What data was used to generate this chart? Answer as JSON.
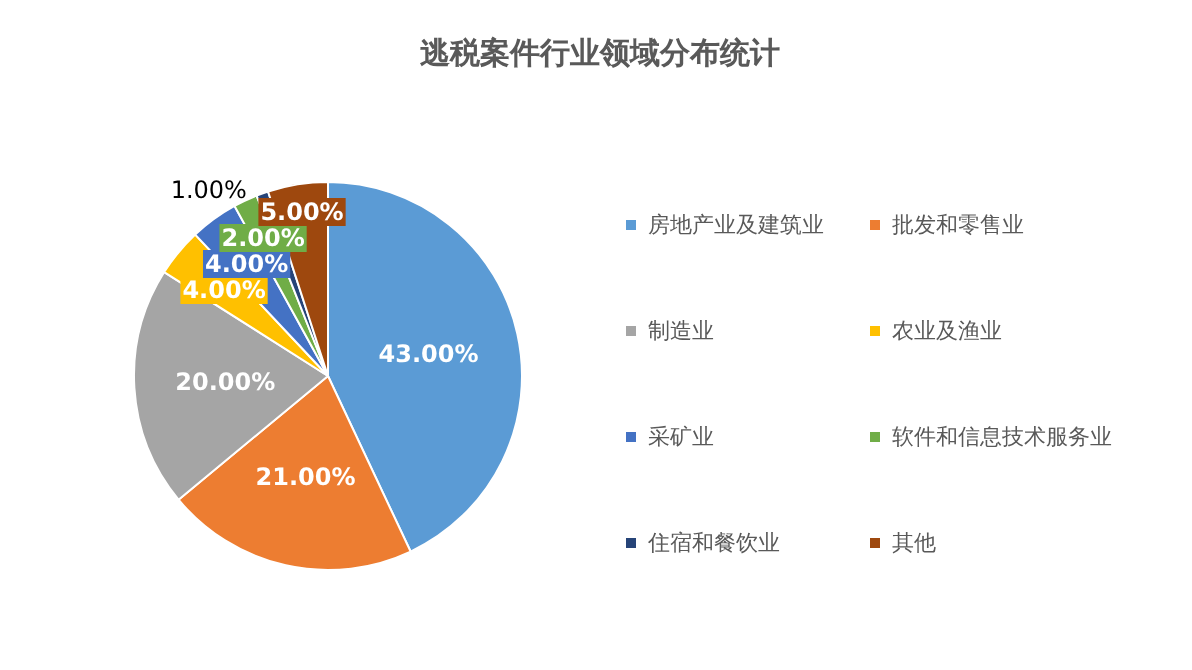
{
  "chart_data": {
    "type": "pie",
    "title": "逃税案件行业领域分布统计",
    "categories": [
      "房地产业及建筑业",
      "批发和零售业",
      "制造业",
      "农业及渔业",
      "采矿业",
      "软件和信息技术服务业",
      "住宿和餐饮业",
      "其他"
    ],
    "values": [
      43,
      21,
      20,
      4,
      4,
      2,
      1,
      5
    ],
    "colors": [
      "#5b9bd5",
      "#ed7d31",
      "#a5a5a5",
      "#ffc000",
      "#4472c4",
      "#70ad47",
      "#264478",
      "#9e480e"
    ],
    "value_labels": [
      "43.00%",
      "21.00%",
      "20.00%",
      "4.00%",
      "4.00%",
      "2.00%",
      "1.00%",
      "5.00%"
    ],
    "legend": "right"
  }
}
